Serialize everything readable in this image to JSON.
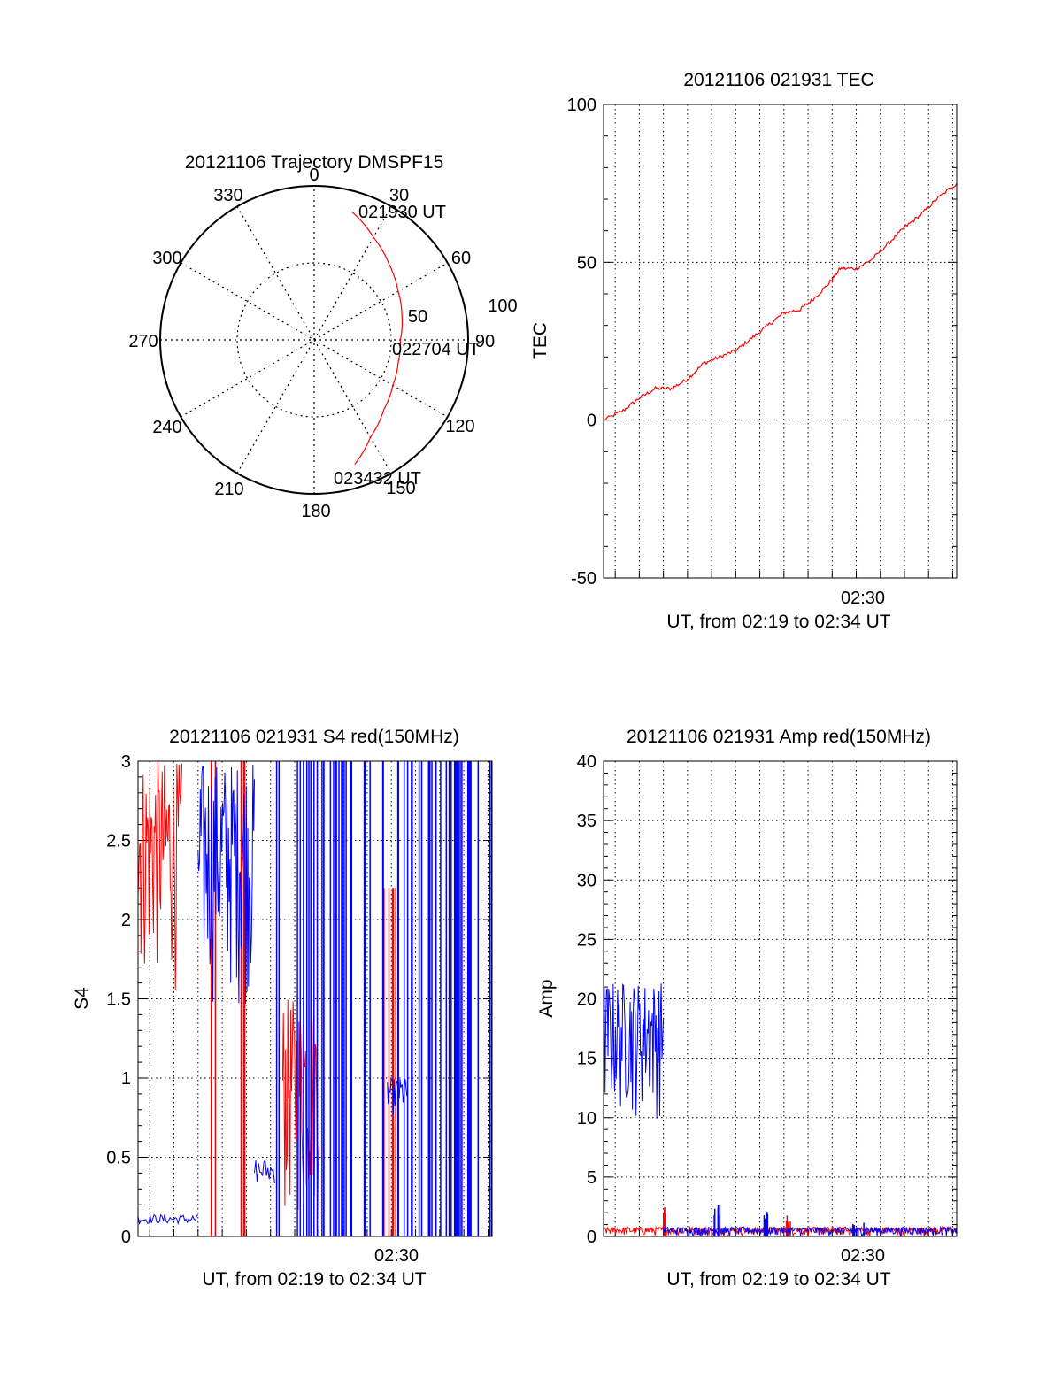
{
  "colors": {
    "red_series": "#ff0000",
    "blue_series": "#0000ff",
    "axes": "#000000",
    "grid": "#000000"
  },
  "chart_data": [
    {
      "type": "polar",
      "title": "20121106 Trajectory DMSPF15",
      "angle_tick_labels": [
        "0",
        "30",
        "60",
        "90",
        "120",
        "150",
        "180",
        "210",
        "240",
        "270",
        "300",
        "330"
      ],
      "radius_tick_labels": [
        "50",
        "100"
      ],
      "rlim": [
        0,
        100
      ],
      "grid": true,
      "trajectory": {
        "az": [
          16.5,
          30,
          45,
          60,
          75,
          90,
          105,
          120,
          135,
          150,
          162
        ],
        "r": [
          86.7,
          77,
          69,
          63,
          59,
          56,
          56.5,
          59,
          64,
          73,
          85
        ]
      },
      "annotations": [
        "021930 UT",
        "022704 UT",
        "023432 UT"
      ]
    },
    {
      "type": "line",
      "title": "20121106 021931 TEC",
      "xlabel": "UT, from 02:19 to 02:34 UT",
      "ylabel": "TEC",
      "ylim": [
        -50,
        100
      ],
      "y_ticks": [
        -50,
        0,
        50,
        100
      ],
      "x_tick_labels": [
        "02:30"
      ],
      "grid": true,
      "series": [
        {
          "color": "#ff0000",
          "x": [
            "02:19:31",
            "02:20:20",
            "02:21:00",
            "02:21:40",
            "02:22:20",
            "02:23:00",
            "02:23:40",
            "02:24:20",
            "02:25:00",
            "02:25:40",
            "02:26:20",
            "02:27:00",
            "02:27:40",
            "02:28:10",
            "02:28:50",
            "02:29:20",
            "02:30:00",
            "02:30:40",
            "02:31:20",
            "02:32:00",
            "02:32:40",
            "02:33:20",
            "02:34:10"
          ],
          "y": [
            0,
            3,
            7,
            10,
            10,
            13,
            18,
            20,
            22,
            26,
            30,
            34,
            35,
            38,
            43,
            48,
            48,
            51,
            56,
            61,
            65,
            70,
            75
          ]
        }
      ]
    },
    {
      "type": "line",
      "title": "20121106 021931 S4 red(150MHz)",
      "xlabel": "UT, from 02:19 to 02:34 UT",
      "ylabel": "S4",
      "ylim": [
        0,
        3
      ],
      "y_ticks": [
        "0",
        "0.5",
        "1",
        "1.5",
        "2",
        "2.5",
        "3"
      ],
      "x_tick_labels": [
        "02:30"
      ],
      "grid": true,
      "series": [
        {
          "color": "#ff0000",
          "segments": [
            {
              "x": [
                "02:19:31",
                "02:21:20"
              ],
              "y_min": 1.5,
              "y_max": 3,
              "style": "dense"
            },
            {
              "x": [
                "02:22:30",
                "02:22:50"
              ],
              "y_min": 0,
              "y_max": 3,
              "style": "spikes"
            },
            {
              "x": [
                "02:23:40",
                "02:24:00"
              ],
              "y_min": 0,
              "y_max": 3,
              "style": "spikes"
            },
            {
              "x": [
                "02:25:30",
                "02:27:00"
              ],
              "y_min": 0,
              "y_max": 1.5,
              "style": "dense"
            },
            {
              "x": [
                "02:29:30",
                "02:30:20"
              ],
              "y_min": 0,
              "y_max": 2.2,
              "style": "spikes"
            }
          ]
        },
        {
          "color": "#0000ff",
          "segments": [
            {
              "x": [
                "02:19:31",
                "02:22:00"
              ],
              "y_min": 0.08,
              "y_max": 0.14,
              "style": "flat"
            },
            {
              "x": [
                "02:22:00",
                "02:24:20"
              ],
              "y_min": 1.4,
              "y_max": 3,
              "style": "dense"
            },
            {
              "x": [
                "02:24:20",
                "02:25:10"
              ],
              "y_min": 0.33,
              "y_max": 0.5,
              "style": "flat"
            },
            {
              "x": [
                "02:25:10",
                "02:34:10"
              ],
              "y_min": 0,
              "y_max": 3,
              "style": "spikes"
            },
            {
              "x": [
                "02:29:50",
                "02:30:40"
              ],
              "y_min": 0.75,
              "y_max": 1.0,
              "style": "dense"
            }
          ]
        }
      ]
    },
    {
      "type": "line",
      "title": "20121106 021931 Amp red(150MHz)",
      "xlabel": "UT, from 02:19 to 02:34 UT",
      "ylabel": "Amp",
      "ylim": [
        0,
        40
      ],
      "y_ticks": [
        0,
        5,
        10,
        15,
        20,
        25,
        30,
        35,
        40
      ],
      "x_tick_labels": [
        "02:30"
      ],
      "grid": true,
      "series": [
        {
          "color": "#ff0000",
          "segments": [
            {
              "x": [
                "02:19:31",
                "02:34:10"
              ],
              "y_min": 0,
              "y_max": 0.8,
              "style": "dense"
            },
            {
              "x": [
                "02:22:00",
                "02:22:05"
              ],
              "y_min": 0,
              "y_max": 2.5,
              "style": "spike"
            },
            {
              "x": [
                "02:27:00",
                "02:27:20"
              ],
              "y_min": 0,
              "y_max": 1.8,
              "style": "spike"
            }
          ]
        },
        {
          "color": "#0000ff",
          "segments": [
            {
              "x": [
                "02:19:31",
                "02:22:00"
              ],
              "y_min": 9.5,
              "y_max": 21.5,
              "style": "dense"
            },
            {
              "x": [
                "02:22:00",
                "02:34:10"
              ],
              "y_min": 0,
              "y_max": 0.8,
              "style": "dense"
            },
            {
              "x": [
                "02:24:00",
                "02:24:25"
              ],
              "y_min": 0,
              "y_max": 3.2,
              "style": "spike"
            },
            {
              "x": [
                "02:26:10",
                "02:26:20"
              ],
              "y_min": 0,
              "y_max": 2.1,
              "style": "spike"
            },
            {
              "x": [
                "02:29:50",
                "02:30:20"
              ],
              "y_min": 0,
              "y_max": 1.2,
              "style": "spike"
            }
          ]
        }
      ]
    }
  ]
}
